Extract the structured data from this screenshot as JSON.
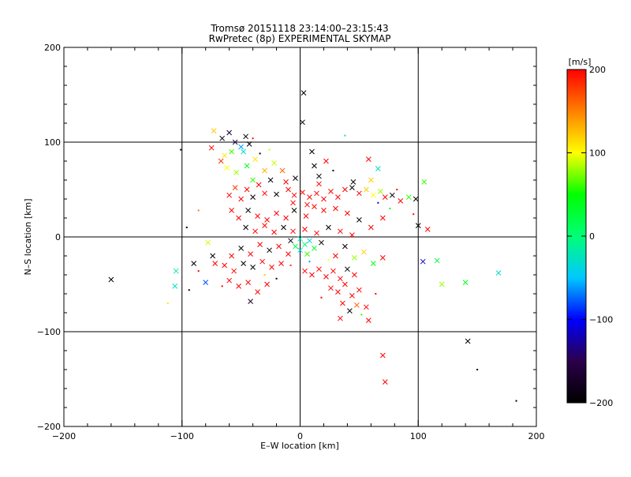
{
  "chart_data": {
    "type": "scatter",
    "title": "Tromsø 20151118 23:14:00–23:15:43",
    "subtitle": "RwPretec (8p) EXPERIMENTAL SKYMAP",
    "xlabel": "E–W location [km]",
    "ylabel": "N–S location [km]",
    "xlim": [
      -200,
      200
    ],
    "ylim": [
      -200,
      200
    ],
    "x_ticks": [
      -200,
      -100,
      0,
      100,
      200
    ],
    "y_ticks": [
      -200,
      -100,
      0,
      100,
      200
    ],
    "grid": true,
    "colorbar": {
      "label": "[m/s]",
      "min": -200,
      "max": 200,
      "ticks": [
        -200,
        -100,
        0,
        100,
        200
      ],
      "colors": [
        "#000000",
        "#2b004a",
        "#0000ff",
        "#00c8ff",
        "#00ff78",
        "#00ff00",
        "#ffff00",
        "#ff8000",
        "#ff0000"
      ]
    },
    "points": [
      {
        "x": 3,
        "y": 152,
        "v": -200,
        "m": "x"
      },
      {
        "x": 2,
        "y": 121,
        "v": -200,
        "m": "x"
      },
      {
        "x": 38,
        "y": 107,
        "v": -20,
        "m": "d"
      },
      {
        "x": -101,
        "y": 92,
        "v": -200,
        "m": "d"
      },
      {
        "x": -73,
        "y": 112,
        "v": 120,
        "m": "x"
      },
      {
        "x": -66,
        "y": 104,
        "v": -200,
        "m": "x"
      },
      {
        "x": -60,
        "y": 110,
        "v": -170,
        "m": "x"
      },
      {
        "x": -55,
        "y": 100,
        "v": -150,
        "m": "x"
      },
      {
        "x": -50,
        "y": 95,
        "v": -60,
        "m": "x"
      },
      {
        "x": -46,
        "y": 106,
        "v": -200,
        "m": "x"
      },
      {
        "x": -43,
        "y": 98,
        "v": -200,
        "m": "x"
      },
      {
        "x": -40,
        "y": 104,
        "v": 200,
        "m": "d"
      },
      {
        "x": -48,
        "y": 90,
        "v": -30,
        "m": "x"
      },
      {
        "x": -58,
        "y": 90,
        "v": 60,
        "m": "x"
      },
      {
        "x": -64,
        "y": 86,
        "v": 110,
        "m": "x"
      },
      {
        "x": -67,
        "y": 80,
        "v": 180,
        "m": "x"
      },
      {
        "x": -75,
        "y": 94,
        "v": 200,
        "m": "x"
      },
      {
        "x": -62,
        "y": 73,
        "v": 100,
        "m": "x"
      },
      {
        "x": -54,
        "y": 68,
        "v": 80,
        "m": "x"
      },
      {
        "x": -45,
        "y": 75,
        "v": 40,
        "m": "x"
      },
      {
        "x": -38,
        "y": 82,
        "v": 110,
        "m": "x"
      },
      {
        "x": -30,
        "y": 70,
        "v": 130,
        "m": "x"
      },
      {
        "x": -22,
        "y": 78,
        "v": 90,
        "m": "x"
      },
      {
        "x": -15,
        "y": 70,
        "v": 160,
        "m": "x"
      },
      {
        "x": -25,
        "y": 60,
        "v": -200,
        "m": "x"
      },
      {
        "x": -35,
        "y": 55,
        "v": 200,
        "m": "x"
      },
      {
        "x": -45,
        "y": 50,
        "v": 200,
        "m": "x"
      },
      {
        "x": -55,
        "y": 52,
        "v": 180,
        "m": "x"
      },
      {
        "x": -60,
        "y": 44,
        "v": 200,
        "m": "x"
      },
      {
        "x": -50,
        "y": 40,
        "v": 200,
        "m": "x"
      },
      {
        "x": -40,
        "y": 42,
        "v": -200,
        "m": "x"
      },
      {
        "x": -30,
        "y": 46,
        "v": 200,
        "m": "x"
      },
      {
        "x": -20,
        "y": 45,
        "v": -200,
        "m": "x"
      },
      {
        "x": -10,
        "y": 50,
        "v": 200,
        "m": "x"
      },
      {
        "x": -5,
        "y": 44,
        "v": 200,
        "m": "x"
      },
      {
        "x": 2,
        "y": 47,
        "v": 200,
        "m": "x"
      },
      {
        "x": 8,
        "y": 42,
        "v": 200,
        "m": "x"
      },
      {
        "x": 14,
        "y": 46,
        "v": 200,
        "m": "x"
      },
      {
        "x": 20,
        "y": 40,
        "v": 200,
        "m": "x"
      },
      {
        "x": 26,
        "y": 48,
        "v": 200,
        "m": "x"
      },
      {
        "x": 32,
        "y": 42,
        "v": 200,
        "m": "x"
      },
      {
        "x": 38,
        "y": 50,
        "v": 200,
        "m": "x"
      },
      {
        "x": 44,
        "y": 52,
        "v": -200,
        "m": "x"
      },
      {
        "x": 50,
        "y": 46,
        "v": 200,
        "m": "x"
      },
      {
        "x": 56,
        "y": 50,
        "v": 120,
        "m": "x"
      },
      {
        "x": 62,
        "y": 44,
        "v": 100,
        "m": "x"
      },
      {
        "x": 68,
        "y": 48,
        "v": 80,
        "m": "x"
      },
      {
        "x": 72,
        "y": 42,
        "v": 200,
        "m": "x"
      },
      {
        "x": 78,
        "y": 44,
        "v": -200,
        "m": "x"
      },
      {
        "x": 85,
        "y": 38,
        "v": 200,
        "m": "x"
      },
      {
        "x": 92,
        "y": 42,
        "v": 60,
        "m": "x"
      },
      {
        "x": 98,
        "y": 40,
        "v": -200,
        "m": "x"
      },
      {
        "x": 60,
        "y": 60,
        "v": 120,
        "m": "x"
      },
      {
        "x": 66,
        "y": 72,
        "v": -30,
        "m": "x"
      },
      {
        "x": 58,
        "y": 82,
        "v": 200,
        "m": "x"
      },
      {
        "x": 45,
        "y": 58,
        "v": -200,
        "m": "x"
      },
      {
        "x": 10,
        "y": 90,
        "v": -200,
        "m": "x"
      },
      {
        "x": 12,
        "y": 75,
        "v": -200,
        "m": "x"
      },
      {
        "x": 16,
        "y": 64,
        "v": -200,
        "m": "x"
      },
      {
        "x": 22,
        "y": 80,
        "v": 200,
        "m": "x"
      },
      {
        "x": 28,
        "y": 70,
        "v": -200,
        "m": "d"
      },
      {
        "x": 105,
        "y": 58,
        "v": 60,
        "m": "x"
      },
      {
        "x": 100,
        "y": 12,
        "v": -200,
        "m": "x"
      },
      {
        "x": 108,
        "y": 8,
        "v": 200,
        "m": "x"
      },
      {
        "x": 70,
        "y": 20,
        "v": 200,
        "m": "x"
      },
      {
        "x": 60,
        "y": 10,
        "v": 200,
        "m": "x"
      },
      {
        "x": 50,
        "y": 18,
        "v": -200,
        "m": "x"
      },
      {
        "x": 40,
        "y": 25,
        "v": 200,
        "m": "x"
      },
      {
        "x": 30,
        "y": 30,
        "v": 200,
        "m": "x"
      },
      {
        "x": 20,
        "y": 28,
        "v": 200,
        "m": "x"
      },
      {
        "x": 12,
        "y": 32,
        "v": 200,
        "m": "x"
      },
      {
        "x": 5,
        "y": 22,
        "v": 200,
        "m": "x"
      },
      {
        "x": -5,
        "y": 28,
        "v": -200,
        "m": "x"
      },
      {
        "x": -12,
        "y": 20,
        "v": 200,
        "m": "x"
      },
      {
        "x": -20,
        "y": 25,
        "v": 200,
        "m": "x"
      },
      {
        "x": -28,
        "y": 18,
        "v": 200,
        "m": "x"
      },
      {
        "x": -36,
        "y": 22,
        "v": 200,
        "m": "x"
      },
      {
        "x": -44,
        "y": 28,
        "v": -200,
        "m": "x"
      },
      {
        "x": -52,
        "y": 20,
        "v": 200,
        "m": "x"
      },
      {
        "x": -58,
        "y": 28,
        "v": 200,
        "m": "x"
      },
      {
        "x": -46,
        "y": 10,
        "v": -200,
        "m": "x"
      },
      {
        "x": -38,
        "y": 6,
        "v": 200,
        "m": "x"
      },
      {
        "x": -30,
        "y": 12,
        "v": 200,
        "m": "x"
      },
      {
        "x": -22,
        "y": 5,
        "v": 200,
        "m": "x"
      },
      {
        "x": -14,
        "y": 10,
        "v": -200,
        "m": "x"
      },
      {
        "x": -6,
        "y": 6,
        "v": 200,
        "m": "x"
      },
      {
        "x": 4,
        "y": 8,
        "v": 200,
        "m": "x"
      },
      {
        "x": 14,
        "y": 4,
        "v": 200,
        "m": "x"
      },
      {
        "x": 24,
        "y": 10,
        "v": -200,
        "m": "x"
      },
      {
        "x": 34,
        "y": 6,
        "v": 200,
        "m": "x"
      },
      {
        "x": 44,
        "y": 2,
        "v": 200,
        "m": "x"
      },
      {
        "x": 0,
        "y": -2,
        "v": -20,
        "m": "x"
      },
      {
        "x": 4,
        "y": -8,
        "v": 0,
        "m": "x"
      },
      {
        "x": 8,
        "y": -4,
        "v": -40,
        "m": "x"
      },
      {
        "x": -4,
        "y": -10,
        "v": 20,
        "m": "x"
      },
      {
        "x": -8,
        "y": -4,
        "v": -200,
        "m": "x"
      },
      {
        "x": 12,
        "y": -12,
        "v": 30,
        "m": "x"
      },
      {
        "x": 18,
        "y": -6,
        "v": -200,
        "m": "x"
      },
      {
        "x": 0,
        "y": -14,
        "v": -30,
        "m": "x"
      },
      {
        "x": 6,
        "y": -18,
        "v": 60,
        "m": "x"
      },
      {
        "x": -10,
        "y": -18,
        "v": 200,
        "m": "x"
      },
      {
        "x": -18,
        "y": -10,
        "v": 200,
        "m": "x"
      },
      {
        "x": -26,
        "y": -14,
        "v": -200,
        "m": "x"
      },
      {
        "x": -34,
        "y": -8,
        "v": 200,
        "m": "x"
      },
      {
        "x": -42,
        "y": -18,
        "v": 200,
        "m": "x"
      },
      {
        "x": -50,
        "y": -12,
        "v": -200,
        "m": "x"
      },
      {
        "x": -58,
        "y": -20,
        "v": 200,
        "m": "x"
      },
      {
        "x": -64,
        "y": -30,
        "v": 200,
        "m": "x"
      },
      {
        "x": -56,
        "y": -36,
        "v": 200,
        "m": "x"
      },
      {
        "x": -48,
        "y": -28,
        "v": -200,
        "m": "x"
      },
      {
        "x": -40,
        "y": -32,
        "v": -200,
        "m": "x"
      },
      {
        "x": -32,
        "y": -26,
        "v": 200,
        "m": "x"
      },
      {
        "x": -24,
        "y": -32,
        "v": 200,
        "m": "x"
      },
      {
        "x": -16,
        "y": -28,
        "v": 200,
        "m": "x"
      },
      {
        "x": -60,
        "y": -46,
        "v": 200,
        "m": "x"
      },
      {
        "x": -52,
        "y": -52,
        "v": 200,
        "m": "x"
      },
      {
        "x": -44,
        "y": -48,
        "v": 200,
        "m": "x"
      },
      {
        "x": -36,
        "y": -58,
        "v": 200,
        "m": "x"
      },
      {
        "x": -42,
        "y": -68,
        "v": -170,
        "m": "x"
      },
      {
        "x": -28,
        "y": -50,
        "v": 200,
        "m": "x"
      },
      {
        "x": -74,
        "y": -20,
        "v": -200,
        "m": "x"
      },
      {
        "x": -78,
        "y": -6,
        "v": 90,
        "m": "x"
      },
      {
        "x": -72,
        "y": -28,
        "v": 200,
        "m": "x"
      },
      {
        "x": -80,
        "y": -48,
        "v": -80,
        "m": "x"
      },
      {
        "x": -90,
        "y": -28,
        "v": -200,
        "m": "x"
      },
      {
        "x": -105,
        "y": -36,
        "v": -20,
        "m": "x"
      },
      {
        "x": -106,
        "y": -52,
        "v": -30,
        "m": "x"
      },
      {
        "x": -112,
        "y": -70,
        "v": 110,
        "m": "d"
      },
      {
        "x": -160,
        "y": -45,
        "v": -200,
        "m": "x"
      },
      {
        "x": 4,
        "y": -36,
        "v": 200,
        "m": "x"
      },
      {
        "x": 10,
        "y": -40,
        "v": 200,
        "m": "x"
      },
      {
        "x": 16,
        "y": -34,
        "v": 200,
        "m": "x"
      },
      {
        "x": 22,
        "y": -42,
        "v": 200,
        "m": "x"
      },
      {
        "x": 28,
        "y": -36,
        "v": 200,
        "m": "x"
      },
      {
        "x": 34,
        "y": -44,
        "v": 200,
        "m": "x"
      },
      {
        "x": 40,
        "y": -34,
        "v": -200,
        "m": "x"
      },
      {
        "x": 46,
        "y": -40,
        "v": 200,
        "m": "x"
      },
      {
        "x": 26,
        "y": -54,
        "v": 200,
        "m": "x"
      },
      {
        "x": 32,
        "y": -58,
        "v": 200,
        "m": "x"
      },
      {
        "x": 38,
        "y": -50,
        "v": 200,
        "m": "x"
      },
      {
        "x": 44,
        "y": -62,
        "v": 200,
        "m": "x"
      },
      {
        "x": 50,
        "y": -56,
        "v": 200,
        "m": "x"
      },
      {
        "x": 36,
        "y": -70,
        "v": 200,
        "m": "x"
      },
      {
        "x": 42,
        "y": -78,
        "v": -200,
        "m": "x"
      },
      {
        "x": 34,
        "y": -86,
        "v": 200,
        "m": "x"
      },
      {
        "x": 56,
        "y": -74,
        "v": 200,
        "m": "x"
      },
      {
        "x": 58,
        "y": -88,
        "v": 200,
        "m": "x"
      },
      {
        "x": 48,
        "y": -72,
        "v": 160,
        "m": "x"
      },
      {
        "x": 30,
        "y": -20,
        "v": 200,
        "m": "x"
      },
      {
        "x": 38,
        "y": -10,
        "v": -200,
        "m": "x"
      },
      {
        "x": 46,
        "y": -22,
        "v": 80,
        "m": "x"
      },
      {
        "x": 54,
        "y": -16,
        "v": 120,
        "m": "x"
      },
      {
        "x": 62,
        "y": -28,
        "v": 40,
        "m": "x"
      },
      {
        "x": 70,
        "y": -22,
        "v": 200,
        "m": "x"
      },
      {
        "x": 104,
        "y": -26,
        "v": -110,
        "m": "x"
      },
      {
        "x": 116,
        "y": -25,
        "v": 20,
        "m": "x"
      },
      {
        "x": 120,
        "y": -50,
        "v": 80,
        "m": "x"
      },
      {
        "x": 140,
        "y": -48,
        "v": 40,
        "m": "x"
      },
      {
        "x": 168,
        "y": -38,
        "v": -30,
        "m": "x"
      },
      {
        "x": 142,
        "y": -110,
        "v": -200,
        "m": "x"
      },
      {
        "x": 150,
        "y": -140,
        "v": -200,
        "m": "d"
      },
      {
        "x": 183,
        "y": -173,
        "v": -200,
        "m": "d"
      },
      {
        "x": 70,
        "y": -125,
        "v": 200,
        "m": "x"
      },
      {
        "x": 72,
        "y": -153,
        "v": 200,
        "m": "x"
      },
      {
        "x": -12,
        "y": 58,
        "v": 200,
        "m": "x"
      },
      {
        "x": -4,
        "y": 62,
        "v": -200,
        "m": "x"
      },
      {
        "x": 16,
        "y": 56,
        "v": 200,
        "m": "x"
      },
      {
        "x": -6,
        "y": 36,
        "v": 200,
        "m": "x"
      },
      {
        "x": 6,
        "y": 34,
        "v": 200,
        "m": "x"
      },
      {
        "x": -40,
        "y": 60,
        "v": 60,
        "m": "x"
      },
      {
        "x": -34,
        "y": 88,
        "v": -200,
        "m": "d"
      },
      {
        "x": -26,
        "y": 92,
        "v": 90,
        "m": "d"
      },
      {
        "x": -86,
        "y": 28,
        "v": 150,
        "m": "d"
      },
      {
        "x": -96,
        "y": 10,
        "v": -200,
        "m": "d"
      },
      {
        "x": 66,
        "y": 36,
        "v": -120,
        "m": "d"
      },
      {
        "x": 76,
        "y": 30,
        "v": 40,
        "m": "d"
      },
      {
        "x": 82,
        "y": 50,
        "v": 200,
        "m": "d"
      },
      {
        "x": 96,
        "y": 24,
        "v": 200,
        "m": "d"
      },
      {
        "x": 24,
        "y": -24,
        "v": 100,
        "m": "d"
      },
      {
        "x": 8,
        "y": -26,
        "v": -60,
        "m": "d"
      },
      {
        "x": -8,
        "y": -30,
        "v": 180,
        "m": "d"
      },
      {
        "x": -20,
        "y": -44,
        "v": -200,
        "m": "d"
      },
      {
        "x": -30,
        "y": -40,
        "v": 120,
        "m": "d"
      },
      {
        "x": -66,
        "y": -52,
        "v": 200,
        "m": "d"
      },
      {
        "x": -86,
        "y": -36,
        "v": 200,
        "m": "d"
      },
      {
        "x": -94,
        "y": -56,
        "v": -200,
        "m": "d"
      },
      {
        "x": 18,
        "y": -64,
        "v": 200,
        "m": "d"
      },
      {
        "x": 52,
        "y": -82,
        "v": 60,
        "m": "d"
      },
      {
        "x": 64,
        "y": -60,
        "v": 200,
        "m": "d"
      }
    ]
  }
}
